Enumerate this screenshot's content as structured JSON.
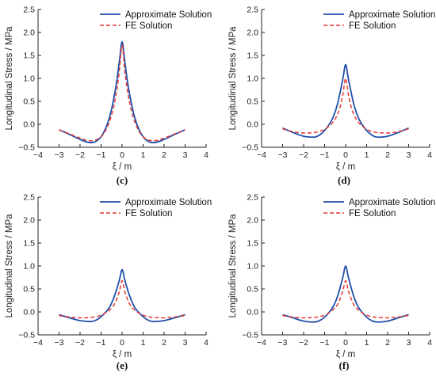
{
  "colors": {
    "approx": "#1f4fa8",
    "fe": "#e53935",
    "axis": "#222222"
  },
  "chart_data": [
    {
      "type": "line",
      "panel_label": "(c)",
      "xlabel": "ξ / m",
      "ylabel": "Longitudinal Stress / MPa",
      "xlim": [
        -4,
        4
      ],
      "ylim": [
        -0.5,
        2.5
      ],
      "xticks": [
        -4,
        -3,
        -2,
        -1,
        0,
        1,
        2,
        3,
        4
      ],
      "yticks": [
        -0.5,
        0.0,
        0.5,
        1.0,
        1.5,
        2.0,
        2.5
      ],
      "xtick_labels": [
        "−4",
        "−3",
        "−2",
        "−1",
        "0",
        "1",
        "2",
        "3",
        "4"
      ],
      "ytick_labels": [
        "−0.5",
        "0.0",
        "0.5",
        "1.0",
        "1.5",
        "2.0",
        "2.5"
      ],
      "grid": false,
      "legend_position": "top-right",
      "series": [
        {
          "name": "Approximate Solution",
          "style": "solid",
          "x": [
            -3.0,
            -2.5,
            -2.0,
            -1.5,
            -1.2,
            -0.9,
            -0.6,
            -0.4,
            -0.25,
            -0.12,
            0.0,
            0.12,
            0.25,
            0.4,
            0.6,
            0.9,
            1.2,
            1.5,
            2.0,
            2.5,
            3.0
          ],
          "y": [
            -0.12,
            -0.22,
            -0.33,
            -0.4,
            -0.36,
            -0.2,
            0.15,
            0.55,
            0.95,
            1.4,
            1.8,
            1.4,
            0.95,
            0.55,
            0.15,
            -0.2,
            -0.36,
            -0.4,
            -0.33,
            -0.22,
            -0.12
          ]
        },
        {
          "name": "FE Solution",
          "style": "dashed",
          "x": [
            -3.0,
            -2.5,
            -2.0,
            -1.5,
            -1.2,
            -0.9,
            -0.6,
            -0.4,
            -0.25,
            -0.12,
            0.0,
            0.12,
            0.25,
            0.4,
            0.6,
            0.9,
            1.2,
            1.5,
            2.0,
            2.5,
            3.0
          ],
          "y": [
            -0.12,
            -0.21,
            -0.3,
            -0.36,
            -0.33,
            -0.22,
            0.06,
            0.38,
            0.75,
            1.2,
            1.72,
            1.2,
            0.75,
            0.38,
            0.06,
            -0.22,
            -0.33,
            -0.36,
            -0.3,
            -0.21,
            -0.12
          ]
        }
      ]
    },
    {
      "type": "line",
      "panel_label": "(d)",
      "xlabel": "ξ / m",
      "ylabel": "Longitudinal Stress / MPa",
      "xlim": [
        -4,
        4
      ],
      "ylim": [
        -0.5,
        2.5
      ],
      "xticks": [
        -4,
        -3,
        -2,
        -1,
        0,
        1,
        2,
        3,
        4
      ],
      "yticks": [
        -0.5,
        0.0,
        0.5,
        1.0,
        1.5,
        2.0,
        2.5
      ],
      "xtick_labels": [
        "−4",
        "−3",
        "−2",
        "−1",
        "0",
        "1",
        "2",
        "3",
        "4"
      ],
      "ytick_labels": [
        "−0.5",
        "0.0",
        "0.5",
        "1.0",
        "1.5",
        "2.0",
        "2.5"
      ],
      "grid": false,
      "legend_position": "top-right",
      "series": [
        {
          "name": "Approximate Solution",
          "style": "solid",
          "x": [
            -3.0,
            -2.5,
            -2.0,
            -1.5,
            -1.2,
            -0.9,
            -0.6,
            -0.4,
            -0.25,
            -0.12,
            0.0,
            0.12,
            0.25,
            0.4,
            0.6,
            0.9,
            1.2,
            1.5,
            2.0,
            2.5,
            3.0
          ],
          "y": [
            -0.08,
            -0.18,
            -0.26,
            -0.28,
            -0.22,
            -0.08,
            0.15,
            0.42,
            0.72,
            1.02,
            1.3,
            1.02,
            0.72,
            0.42,
            0.15,
            -0.08,
            -0.22,
            -0.28,
            -0.26,
            -0.18,
            -0.08
          ]
        },
        {
          "name": "FE Solution",
          "style": "dashed",
          "x": [
            -3.0,
            -2.5,
            -2.0,
            -1.5,
            -1.2,
            -0.9,
            -0.6,
            -0.4,
            -0.25,
            -0.12,
            0.0,
            0.12,
            0.25,
            0.4,
            0.6,
            0.9,
            1.2,
            1.5,
            2.0,
            2.5,
            3.0
          ],
          "y": [
            -0.1,
            -0.16,
            -0.19,
            -0.18,
            -0.15,
            -0.08,
            0.05,
            0.2,
            0.4,
            0.68,
            1.0,
            0.68,
            0.4,
            0.2,
            0.05,
            -0.08,
            -0.15,
            -0.18,
            -0.19,
            -0.16,
            -0.1
          ]
        }
      ]
    },
    {
      "type": "line",
      "panel_label": "(e)",
      "xlabel": "ξ / m",
      "ylabel": "Longitudinal Stress / MPa",
      "xlim": [
        -4,
        4
      ],
      "ylim": [
        -0.5,
        2.5
      ],
      "xticks": [
        -4,
        -3,
        -2,
        -1,
        0,
        1,
        2,
        3,
        4
      ],
      "yticks": [
        -0.5,
        0.0,
        0.5,
        1.0,
        1.5,
        2.0,
        2.5
      ],
      "xtick_labels": [
        "−4",
        "−3",
        "−2",
        "−1",
        "0",
        "1",
        "2",
        "3",
        "4"
      ],
      "ytick_labels": [
        "−0.5",
        "0.0",
        "0.5",
        "1.0",
        "1.5",
        "2.0",
        "2.5"
      ],
      "grid": false,
      "legend_position": "top-right",
      "series": [
        {
          "name": "Approximate Solution",
          "style": "solid",
          "x": [
            -3.0,
            -2.5,
            -2.0,
            -1.5,
            -1.2,
            -0.9,
            -0.6,
            -0.4,
            -0.25,
            -0.12,
            0.0,
            0.12,
            0.25,
            0.4,
            0.6,
            0.9,
            1.2,
            1.5,
            2.0,
            2.5,
            3.0
          ],
          "y": [
            -0.06,
            -0.13,
            -0.19,
            -0.21,
            -0.17,
            -0.06,
            0.1,
            0.3,
            0.5,
            0.71,
            0.92,
            0.71,
            0.5,
            0.3,
            0.1,
            -0.06,
            -0.17,
            -0.21,
            -0.19,
            -0.13,
            -0.06
          ]
        },
        {
          "name": "FE Solution",
          "style": "dashed",
          "x": [
            -3.0,
            -2.5,
            -2.0,
            -1.5,
            -1.2,
            -0.9,
            -0.6,
            -0.4,
            -0.25,
            -0.12,
            0.0,
            0.12,
            0.25,
            0.4,
            0.6,
            0.9,
            1.2,
            1.5,
            2.0,
            2.5,
            3.0
          ],
          "y": [
            -0.08,
            -0.11,
            -0.13,
            -0.12,
            -0.1,
            -0.05,
            0.04,
            0.14,
            0.28,
            0.46,
            0.68,
            0.46,
            0.28,
            0.14,
            0.04,
            -0.05,
            -0.1,
            -0.12,
            -0.13,
            -0.11,
            -0.08
          ]
        }
      ]
    },
    {
      "type": "line",
      "panel_label": "(f)",
      "xlabel": "ξ / m",
      "ylabel": "Longitudinal Stress / MPa",
      "xlim": [
        -4,
        4
      ],
      "ylim": [
        -0.5,
        2.5
      ],
      "xticks": [
        -4,
        -3,
        -2,
        -1,
        0,
        1,
        2,
        3,
        4
      ],
      "yticks": [
        -0.5,
        0.0,
        0.5,
        1.0,
        1.5,
        2.0,
        2.5
      ],
      "xtick_labels": [
        "−4",
        "−3",
        "−2",
        "−1",
        "0",
        "1",
        "2",
        "3",
        "4"
      ],
      "ytick_labels": [
        "−0.5",
        "0.0",
        "0.5",
        "1.0",
        "1.5",
        "2.0",
        "2.5"
      ],
      "grid": false,
      "legend_position": "top-right",
      "series": [
        {
          "name": "Approximate Solution",
          "style": "solid",
          "x": [
            -3.0,
            -2.5,
            -2.0,
            -1.5,
            -1.2,
            -0.9,
            -0.6,
            -0.4,
            -0.25,
            -0.12,
            0.0,
            0.12,
            0.25,
            0.4,
            0.6,
            0.9,
            1.2,
            1.5,
            2.0,
            2.5,
            3.0
          ],
          "y": [
            -0.06,
            -0.13,
            -0.2,
            -0.22,
            -0.18,
            -0.07,
            0.11,
            0.32,
            0.55,
            0.78,
            1.0,
            0.78,
            0.55,
            0.32,
            0.11,
            -0.07,
            -0.18,
            -0.22,
            -0.2,
            -0.13,
            -0.06
          ]
        },
        {
          "name": "FE Solution",
          "style": "dashed",
          "x": [
            -3.0,
            -2.5,
            -2.0,
            -1.5,
            -1.2,
            -0.9,
            -0.6,
            -0.4,
            -0.25,
            -0.12,
            0.0,
            0.12,
            0.25,
            0.4,
            0.6,
            0.9,
            1.2,
            1.5,
            2.0,
            2.5,
            3.0
          ],
          "y": [
            -0.08,
            -0.11,
            -0.13,
            -0.12,
            -0.1,
            -0.05,
            0.05,
            0.15,
            0.3,
            0.48,
            0.68,
            0.48,
            0.3,
            0.15,
            0.05,
            -0.05,
            -0.1,
            -0.12,
            -0.13,
            -0.11,
            -0.08
          ]
        }
      ]
    }
  ]
}
